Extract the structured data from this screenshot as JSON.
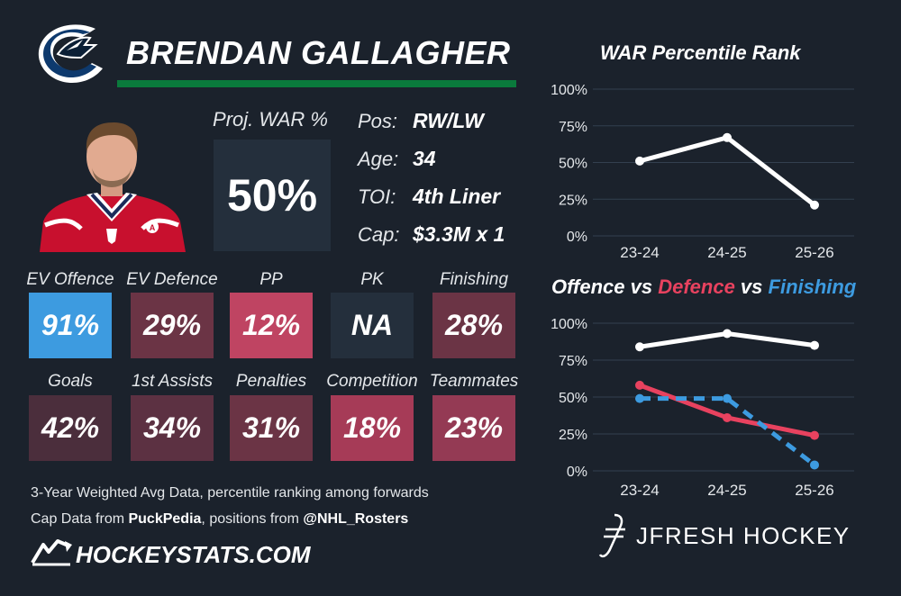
{
  "header": {
    "player_name": "BRENDAN GALLAGHER"
  },
  "proj_war": {
    "label": "Proj. WAR %",
    "value": "50%"
  },
  "info": [
    {
      "label": "Pos:",
      "value": "RW/LW"
    },
    {
      "label": "Age:",
      "value": "34"
    },
    {
      "label": "TOI:",
      "value": "4th Liner"
    },
    {
      "label": "Cap:",
      "value": "$3.3M x 1"
    }
  ],
  "stats_row1": [
    {
      "label": "EV Offence",
      "value": "91%",
      "color": "#3d9be0"
    },
    {
      "label": "EV Defence",
      "value": "29%",
      "color": "#6b3445"
    },
    {
      "label": "PP",
      "value": "12%",
      "color": "#bf4462"
    },
    {
      "label": "PK",
      "value": "NA",
      "color": "#242f3c"
    },
    {
      "label": "Finishing",
      "value": "28%",
      "color": "#6b3445"
    }
  ],
  "stats_row2": [
    {
      "label": "Goals",
      "value": "42%",
      "color": "#4b2e3c"
    },
    {
      "label": "1st Assists",
      "value": "34%",
      "color": "#5c3142"
    },
    {
      "label": "Penalties",
      "value": "31%",
      "color": "#6b3445"
    },
    {
      "label": "Competition",
      "value": "18%",
      "color": "#a63b57"
    },
    {
      "label": "Teammates",
      "value": "23%",
      "color": "#943a54"
    }
  ],
  "footer": {
    "line1": "3-Year Weighted Avg Data, percentile ranking among forwards",
    "line2_prefix": "Cap Data from ",
    "line2_source1": "PuckPedia",
    "line2_middle": ", positions from ",
    "line2_source2": "@NHL_Rosters",
    "brand": "HOCKEYSTATS.COM"
  },
  "credit": {
    "brand": "JFRESH HOCKEY"
  },
  "chart_data": [
    {
      "type": "line",
      "title": "WAR Percentile Rank",
      "categories": [
        "23-24",
        "24-25",
        "25-26"
      ],
      "yticks": [
        "100%",
        "75%",
        "50%",
        "25%",
        "0%"
      ],
      "ylim": [
        0,
        100
      ],
      "grid": true,
      "series": [
        {
          "values": [
            51,
            67,
            21
          ],
          "color": "#ffffff",
          "dashed": false
        }
      ]
    },
    {
      "type": "line",
      "title_parts": [
        {
          "text": "Offence",
          "color": "#ffffff"
        },
        {
          "text": " vs ",
          "color": "#ffffff"
        },
        {
          "text": "Defence",
          "color": "#e8425f"
        },
        {
          "text": " vs ",
          "color": "#ffffff"
        },
        {
          "text": "Finishing",
          "color": "#3d9be0"
        }
      ],
      "categories": [
        "23-24",
        "24-25",
        "25-26"
      ],
      "yticks": [
        "100%",
        "75%",
        "50%",
        "25%",
        "0%"
      ],
      "ylim": [
        0,
        100
      ],
      "grid": true,
      "series": [
        {
          "name": "Offence",
          "values": [
            84,
            93,
            85
          ],
          "color": "#ffffff",
          "dashed": false
        },
        {
          "name": "Defence",
          "values": [
            58,
            36,
            24
          ],
          "color": "#e8425f",
          "dashed": false
        },
        {
          "name": "Finishing",
          "values": [
            49,
            49,
            4
          ],
          "color": "#3d9be0",
          "dashed": true
        }
      ]
    }
  ]
}
